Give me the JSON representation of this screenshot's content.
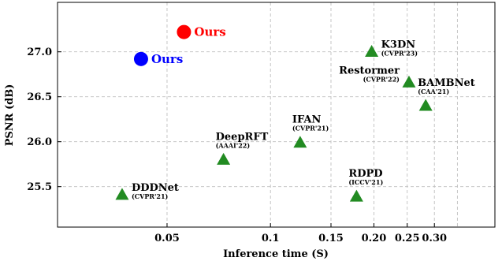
{
  "chart_data": {
    "type": "scatter",
    "xlabel": "Inference time (S)",
    "ylabel": "PSNR (dB)",
    "x_scale": "log",
    "xlim": [
      0.024,
      0.45
    ],
    "ylim": [
      25.05,
      27.55
    ],
    "x_ticks": [
      {
        "value": 0.05,
        "label": "0.05"
      },
      {
        "value": 0.1,
        "label": "0.1"
      },
      {
        "value": 0.15,
        "label": "0.15"
      },
      {
        "value": 0.2,
        "label": "0.20"
      },
      {
        "value": 0.25,
        "label": "0.25"
      },
      {
        "value": 0.3,
        "label": "0.30"
      }
    ],
    "x_grid": [
      0.05,
      0.1,
      0.15,
      0.2,
      0.25,
      0.3,
      0.35
    ],
    "y_ticks": [
      {
        "value": 25.5,
        "label": "25.5"
      },
      {
        "value": 26.0,
        "label": "26.0"
      },
      {
        "value": 26.5,
        "label": "26.5"
      },
      {
        "value": 27.0,
        "label": "27.0"
      }
    ],
    "grid": true,
    "points": [
      {
        "name": "Ours",
        "venue": "",
        "x": 0.056,
        "y": 27.22,
        "marker": "circle",
        "color": "#ff0000",
        "label_pos": "right"
      },
      {
        "name": "Ours",
        "venue": "",
        "x": 0.042,
        "y": 26.92,
        "marker": "circle",
        "color": "#0000ff",
        "label_pos": "right"
      },
      {
        "name": "K3DN",
        "venue": "(CVPR'23)",
        "x": 0.197,
        "y": 27.01,
        "marker": "triangle",
        "color": "#228b22",
        "label_pos": "right"
      },
      {
        "name": "Restormer",
        "venue": "(CVPR'22)",
        "x": 0.253,
        "y": 26.67,
        "marker": "triangle",
        "color": "#228b22",
        "label_pos": "left"
      },
      {
        "name": "BAMBNet",
        "venue": "(CAA'21)",
        "x": 0.283,
        "y": 26.41,
        "marker": "triangle",
        "color": "#228b22",
        "label_pos": "above"
      },
      {
        "name": "IFAN",
        "venue": "(CVPR'21)",
        "x": 0.122,
        "y": 26.0,
        "marker": "triangle",
        "color": "#228b22",
        "label_pos": "above"
      },
      {
        "name": "DeepRFT",
        "venue": "(AAAI'22)",
        "x": 0.073,
        "y": 25.81,
        "marker": "triangle",
        "color": "#228b22",
        "label_pos": "above"
      },
      {
        "name": "DDDNet",
        "venue": "(CVPR'21)",
        "x": 0.037,
        "y": 25.42,
        "marker": "triangle",
        "color": "#228b22",
        "label_pos": "right"
      },
      {
        "name": "RDPD",
        "venue": "(ICCV'21)",
        "x": 0.178,
        "y": 25.4,
        "marker": "triangle",
        "color": "#228b22",
        "label_pos": "above"
      }
    ]
  }
}
